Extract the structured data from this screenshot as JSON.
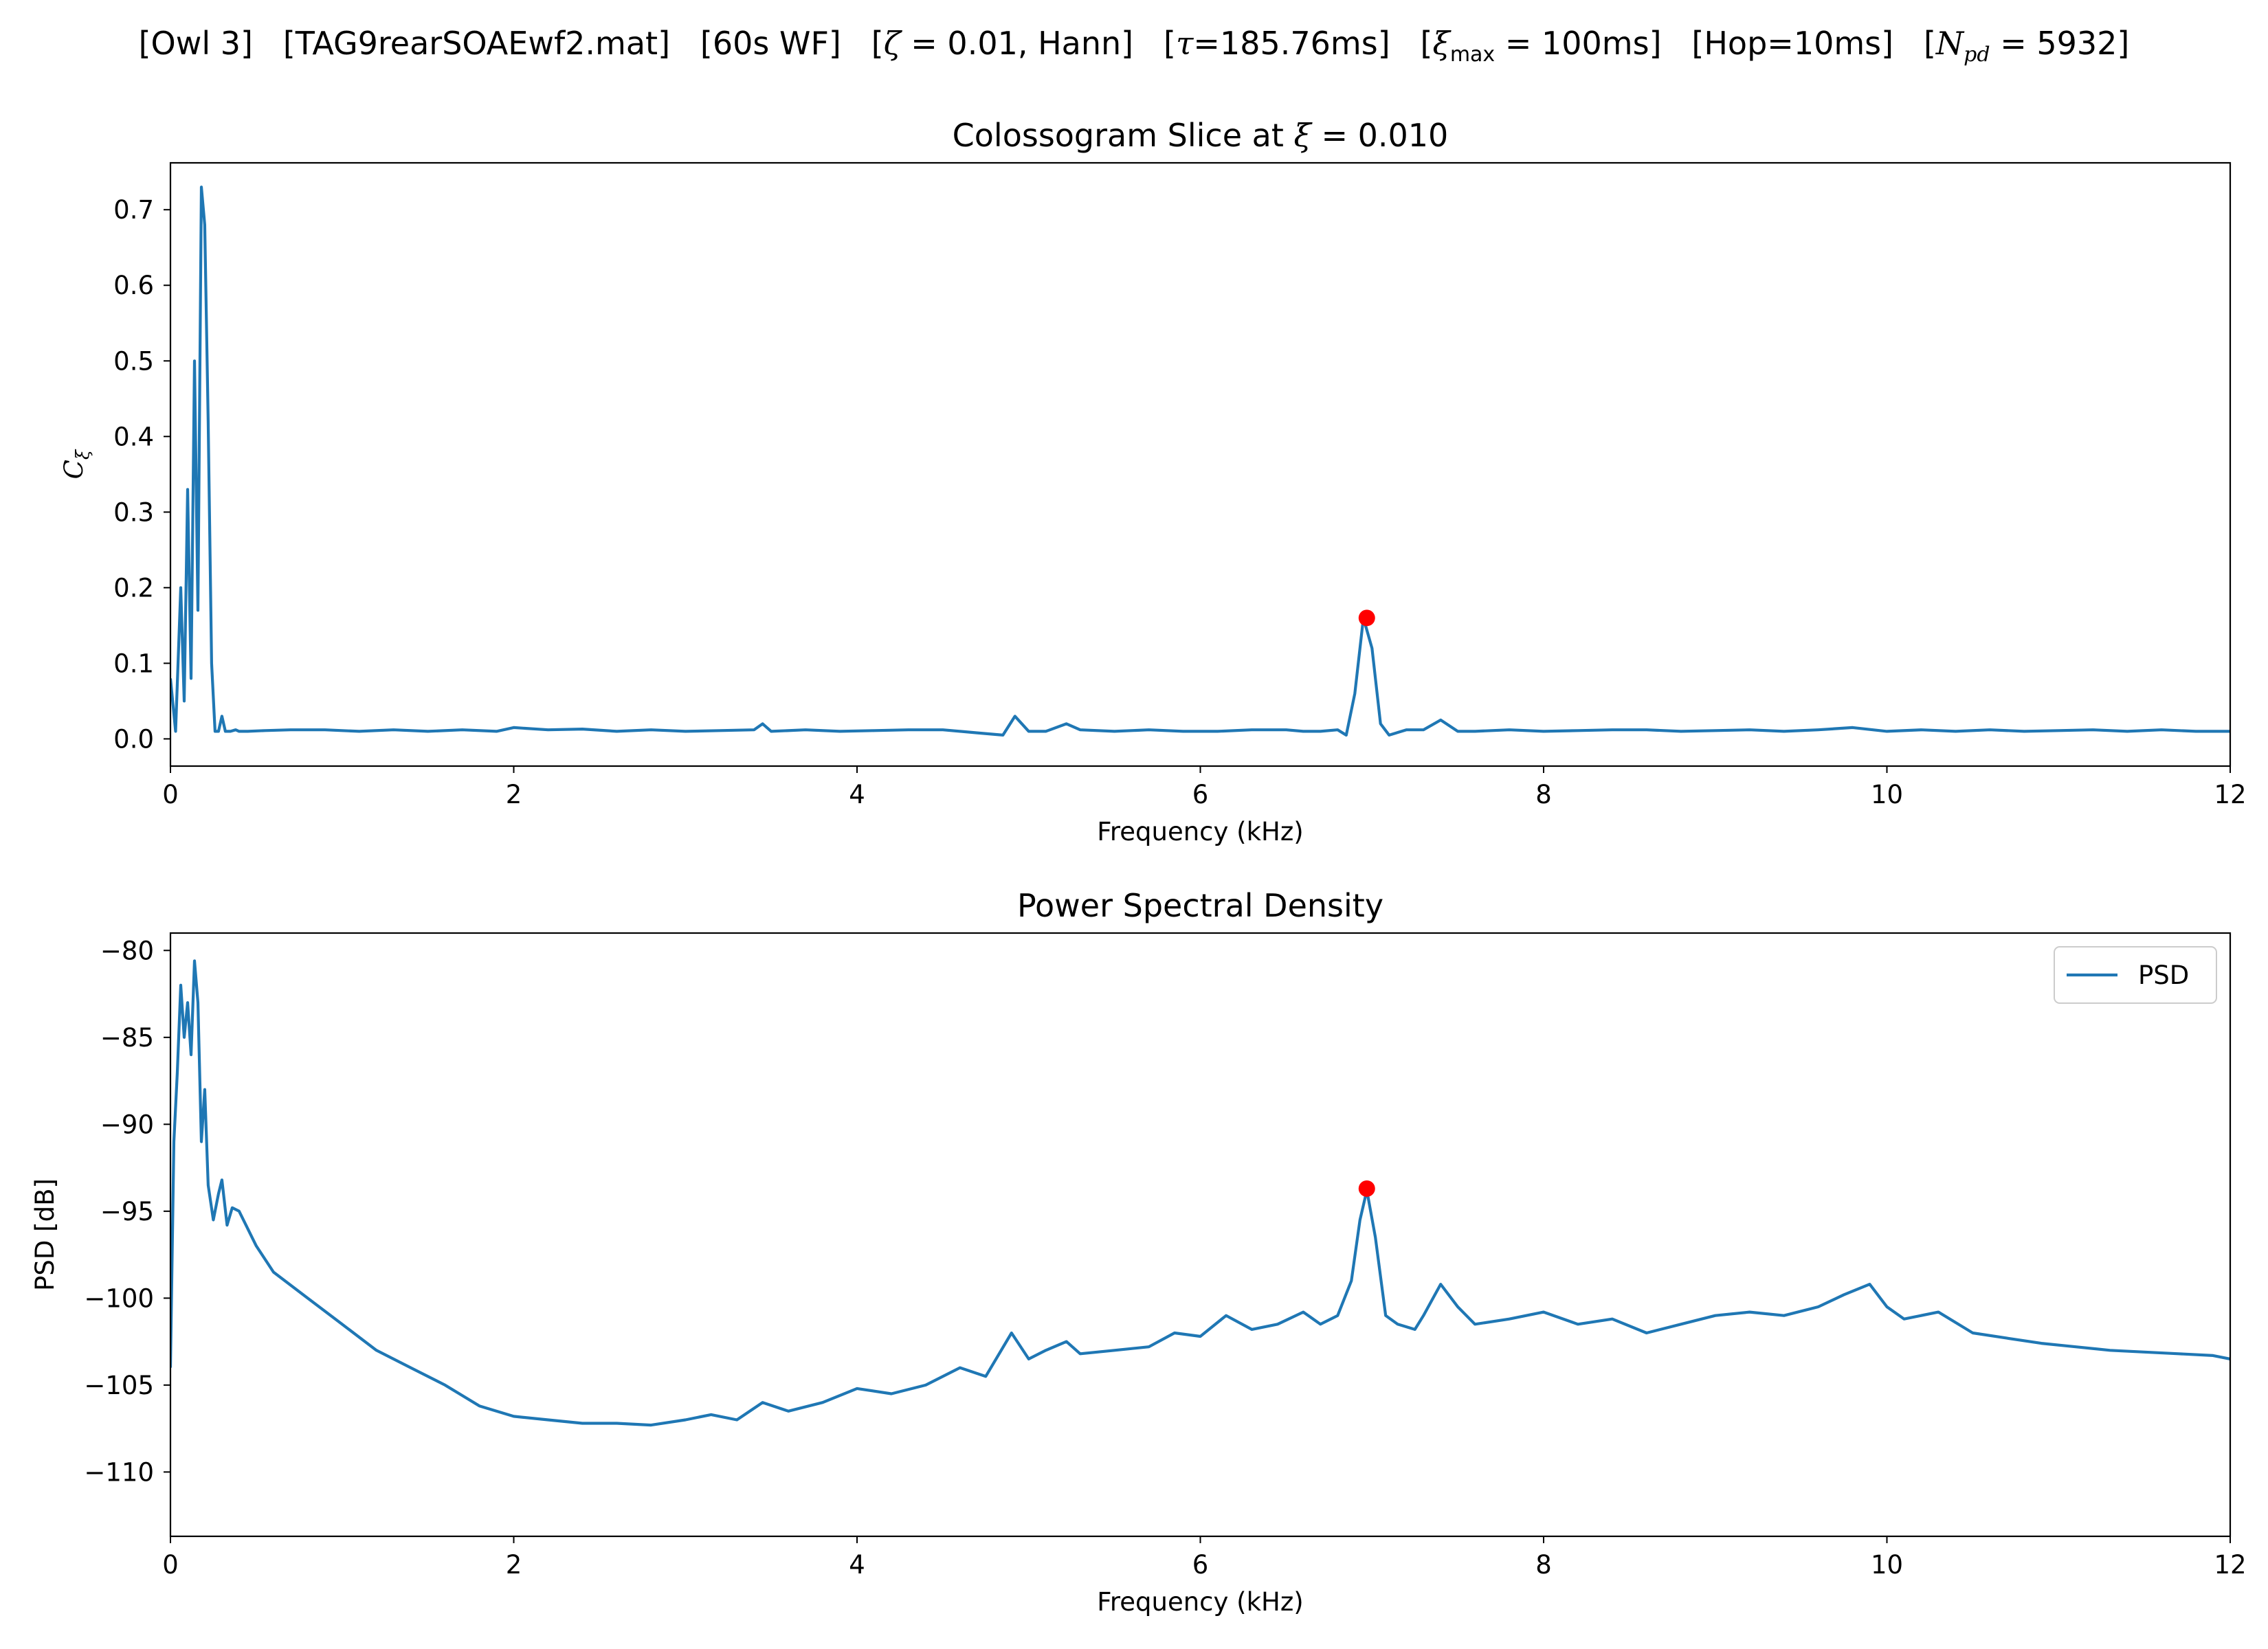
{
  "figure": {
    "suptitle_parts": [
      "[Owl 3]",
      "[TAG9rearSOAEwf2.mat]",
      "[60s WF]",
      "[ζ = 0.01, Hann]",
      "[τ=185.76ms]",
      "[ξmax = 100ms]",
      "[Hop=10ms]",
      "[Npd = 5932]"
    ]
  },
  "chart_data": [
    {
      "type": "line",
      "title": "Colossogram Slice at ξ = 0.010",
      "xlabel": "Frequency (kHz)",
      "ylabel": "Cξ",
      "xlim": [
        0,
        12
      ],
      "ylim": [
        -0.036,
        0.762
      ],
      "xticks": [
        0,
        2,
        4,
        6,
        8,
        10,
        12
      ],
      "yticks": [
        0.0,
        0.1,
        0.2,
        0.3,
        0.4,
        0.5,
        0.6,
        0.7
      ],
      "ytick_labels": [
        "0.0",
        "0.1",
        "0.2",
        "0.3",
        "0.4",
        "0.5",
        "0.6",
        "0.7"
      ],
      "grid": false,
      "legend": null,
      "series": [
        {
          "color": "#1f77b4",
          "x": [
            0.0,
            0.03,
            0.06,
            0.08,
            0.1,
            0.12,
            0.14,
            0.16,
            0.18,
            0.2,
            0.22,
            0.24,
            0.26,
            0.28,
            0.3,
            0.32,
            0.35,
            0.38,
            0.4,
            0.45,
            0.55,
            0.7,
            0.9,
            1.1,
            1.3,
            1.5,
            1.7,
            1.9,
            2.0,
            2.2,
            2.4,
            2.6,
            2.8,
            3.0,
            3.2,
            3.4,
            3.45,
            3.5,
            3.7,
            3.9,
            4.1,
            4.3,
            4.5,
            4.7,
            4.85,
            4.92,
            5.0,
            5.1,
            5.22,
            5.3,
            5.5,
            5.7,
            5.9,
            6.1,
            6.3,
            6.5,
            6.6,
            6.7,
            6.8,
            6.85,
            6.9,
            6.95,
            7.0,
            7.05,
            7.1,
            7.2,
            7.3,
            7.4,
            7.5,
            7.6,
            7.8,
            8.0,
            8.2,
            8.4,
            8.6,
            8.8,
            9.0,
            9.2,
            9.4,
            9.6,
            9.8,
            10.0,
            10.2,
            10.4,
            10.6,
            10.8,
            11.0,
            11.2,
            11.4,
            11.6,
            11.8,
            12.0
          ],
          "y": [
            0.08,
            0.01,
            0.2,
            0.05,
            0.33,
            0.08,
            0.5,
            0.17,
            0.73,
            0.68,
            0.42,
            0.1,
            0.01,
            0.01,
            0.03,
            0.01,
            0.01,
            0.012,
            0.01,
            0.01,
            0.011,
            0.012,
            0.012,
            0.01,
            0.012,
            0.01,
            0.012,
            0.01,
            0.015,
            0.012,
            0.013,
            0.01,
            0.012,
            0.01,
            0.011,
            0.012,
            0.02,
            0.01,
            0.012,
            0.01,
            0.011,
            0.012,
            0.012,
            0.008,
            0.005,
            0.03,
            0.01,
            0.01,
            0.02,
            0.012,
            0.01,
            0.012,
            0.01,
            0.01,
            0.012,
            0.012,
            0.01,
            0.01,
            0.012,
            0.005,
            0.06,
            0.16,
            0.12,
            0.02,
            0.005,
            0.012,
            0.012,
            0.025,
            0.01,
            0.01,
            0.012,
            0.01,
            0.011,
            0.012,
            0.012,
            0.01,
            0.011,
            0.012,
            0.01,
            0.012,
            0.015,
            0.01,
            0.012,
            0.01,
            0.012,
            0.01,
            0.011,
            0.012,
            0.01,
            0.012,
            0.01,
            0.01
          ]
        }
      ],
      "marker": {
        "x": 6.97,
        "y": 0.16,
        "color": "#ff0000"
      }
    },
    {
      "type": "line",
      "title": "Power Spectral Density",
      "xlabel": "Frequency (kHz)",
      "ylabel": "PSD [dB]",
      "xlim": [
        0,
        12
      ],
      "ylim": [
        -113.7,
        -79.0
      ],
      "xticks": [
        0,
        2,
        4,
        6,
        8,
        10,
        12
      ],
      "yticks": [
        -80,
        -85,
        -90,
        -95,
        -100,
        -105,
        -110
      ],
      "ytick_labels": [
        "−80",
        "−85",
        "−90",
        "−95",
        "−100",
        "−105",
        "−110"
      ],
      "grid": false,
      "legend": {
        "position": "upper right",
        "entries": [
          "PSD"
        ]
      },
      "series": [
        {
          "name": "PSD",
          "color": "#1f77b4",
          "x": [
            0.0,
            0.02,
            0.04,
            0.06,
            0.08,
            0.1,
            0.12,
            0.14,
            0.16,
            0.18,
            0.2,
            0.22,
            0.25,
            0.28,
            0.3,
            0.33,
            0.36,
            0.4,
            0.5,
            0.6,
            0.8,
            1.0,
            1.2,
            1.4,
            1.6,
            1.8,
            2.0,
            2.2,
            2.4,
            2.6,
            2.8,
            3.0,
            3.15,
            3.3,
            3.45,
            3.6,
            3.8,
            4.0,
            4.2,
            4.4,
            4.6,
            4.75,
            4.9,
            5.0,
            5.1,
            5.22,
            5.3,
            5.5,
            5.7,
            5.85,
            6.0,
            6.15,
            6.3,
            6.45,
            6.6,
            6.7,
            6.8,
            6.88,
            6.93,
            6.97,
            7.02,
            7.08,
            7.15,
            7.25,
            7.3,
            7.4,
            7.5,
            7.6,
            7.8,
            8.0,
            8.2,
            8.4,
            8.6,
            8.8,
            9.0,
            9.2,
            9.4,
            9.6,
            9.75,
            9.9,
            10.0,
            10.1,
            10.3,
            10.5,
            10.7,
            10.9,
            11.1,
            11.3,
            11.5,
            11.7,
            11.9,
            12.0
          ],
          "y": [
            -104.0,
            -91.0,
            -87.0,
            -82.0,
            -85.0,
            -83.0,
            -86.0,
            -80.6,
            -83.0,
            -91.0,
            -88.0,
            -93.5,
            -95.5,
            -94.0,
            -93.2,
            -95.8,
            -94.8,
            -95.0,
            -97.0,
            -98.5,
            -100.0,
            -101.5,
            -103.0,
            -104.0,
            -105.0,
            -106.2,
            -106.8,
            -107.0,
            -107.2,
            -107.2,
            -107.3,
            -107.0,
            -106.7,
            -107.0,
            -106.0,
            -106.5,
            -106.0,
            -105.2,
            -105.5,
            -105.0,
            -104.0,
            -104.5,
            -102.0,
            -103.5,
            -103.0,
            -102.5,
            -103.2,
            -103.0,
            -102.8,
            -102.0,
            -102.2,
            -101.0,
            -101.8,
            -101.5,
            -100.8,
            -101.5,
            -101.0,
            -99.0,
            -95.5,
            -93.8,
            -96.5,
            -101.0,
            -101.5,
            -101.8,
            -101.0,
            -99.2,
            -100.5,
            -101.5,
            -101.2,
            -100.8,
            -101.5,
            -101.2,
            -102.0,
            -101.5,
            -101.0,
            -100.8,
            -101.0,
            -100.5,
            -99.8,
            -99.2,
            -100.5,
            -101.2,
            -100.8,
            -102.0,
            -102.3,
            -102.6,
            -102.8,
            -103.0,
            -103.1,
            -103.2,
            -103.3,
            -103.5
          ]
        }
      ],
      "marker": {
        "x": 6.97,
        "y": -93.7,
        "color": "#ff0000"
      }
    }
  ]
}
